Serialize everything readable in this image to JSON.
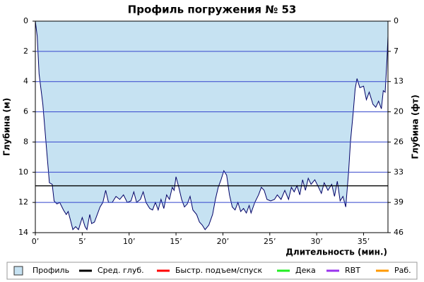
{
  "chart_data": {
    "type": "area",
    "title": "Профиль погружения № 53",
    "xlabel": "Длительность (мин.)",
    "ylabel": "Глубина (м)",
    "y2label": "Глубина (фт)",
    "x": [
      0,
      0.2,
      0.4,
      0.8,
      1.2,
      1.5,
      1.8,
      2,
      2.3,
      2.6,
      3,
      3.3,
      3.5,
      3.8,
      4,
      4.3,
      4.6,
      4.8,
      5,
      5.3,
      5.5,
      5.8,
      6,
      6.3,
      6.6,
      6.9,
      7.2,
      7.5,
      7.8,
      8.2,
      8.6,
      9,
      9.4,
      9.8,
      10.2,
      10.5,
      10.8,
      11.2,
      11.5,
      11.8,
      12.2,
      12.5,
      12.8,
      13.1,
      13.4,
      13.7,
      14,
      14.3,
      14.6,
      14.8,
      15,
      15.3,
      15.6,
      15.9,
      16.2,
      16.5,
      16.8,
      17.2,
      17.5,
      17.8,
      18.1,
      18.5,
      18.9,
      19.2,
      19.5,
      19.8,
      20.1,
      20.4,
      20.7,
      21,
      21.3,
      21.6,
      21.9,
      22.2,
      22.5,
      22.8,
      23,
      23.4,
      23.8,
      24.1,
      24.4,
      24.7,
      25.1,
      25.5,
      25.8,
      26.2,
      26.6,
      27,
      27.3,
      27.6,
      27.9,
      28.2,
      28.5,
      28.8,
      29.1,
      29.4,
      29.8,
      30.2,
      30.5,
      30.8,
      31.2,
      31.6,
      31.9,
      32.2,
      32.5,
      32.8,
      33.1,
      33.4,
      33.6,
      33.9,
      34.1,
      34.3,
      34.6,
      35,
      35.3,
      35.6,
      36,
      36.3,
      36.6,
      36.9,
      37.1,
      37.3,
      37.5,
      37.6
    ],
    "series": [
      {
        "name": "Профиль",
        "color": "#c6e2f2",
        "line_color": "#000066",
        "values": [
          0,
          1,
          3.5,
          5.5,
          8.5,
          10.7,
          10.8,
          11.9,
          12.1,
          12,
          12.5,
          12.8,
          12.6,
          13.3,
          13.8,
          13.6,
          13.8,
          13.4,
          13,
          13.6,
          13.8,
          12.8,
          13.4,
          13.3,
          12.8,
          12.3,
          12,
          11.2,
          12,
          12,
          11.6,
          11.8,
          11.5,
          12,
          11.9,
          11.3,
          12,
          11.8,
          11.3,
          12,
          12.4,
          12.5,
          12,
          12.5,
          11.8,
          12.4,
          11.5,
          11.8,
          11,
          11.2,
          10.3,
          11,
          11.8,
          12.3,
          12.1,
          11.6,
          12.5,
          12.8,
          13.3,
          13.5,
          13.8,
          13.5,
          12.8,
          11.8,
          11,
          10.5,
          9.9,
          10.2,
          11.5,
          12.3,
          12.5,
          12,
          12.6,
          12.4,
          12.7,
          12.2,
          12.7,
          12,
          11.5,
          11,
          11.2,
          11.8,
          11.9,
          11.8,
          11.5,
          11.8,
          11.2,
          11.8,
          11,
          11.3,
          10.9,
          11.5,
          10.5,
          11.2,
          10.4,
          10.8,
          10.5,
          11,
          11.4,
          10.7,
          11.2,
          10.8,
          11.6,
          10.6,
          11.9,
          11.6,
          12.3,
          10,
          8,
          6,
          4.5,
          3.8,
          4.4,
          4.3,
          5.2,
          4.7,
          5.5,
          5.7,
          5.3,
          5.8,
          4.6,
          4.7,
          2.5,
          1
        ]
      }
    ],
    "reference_lines": [
      {
        "name": "Сред. глуб.",
        "color": "#000000",
        "value": 10.9
      }
    ],
    "legend": [
      {
        "name": "Быстр. подъем/спуск",
        "color": "#ff0000"
      },
      {
        "name": "Дека",
        "color": "#22ee22"
      },
      {
        "name": "RBT",
        "color": "#9933ee"
      },
      {
        "name": "Раб.",
        "color": "#ff9900"
      }
    ],
    "xlim": [
      0,
      37.6
    ],
    "ylim": [
      0,
      14
    ],
    "y_inverted": true,
    "y2lim": [
      0,
      45.93
    ],
    "xticks": [
      {
        "value": 0,
        "label": "0’"
      },
      {
        "value": 5,
        "label": "5’"
      },
      {
        "value": 10,
        "label": "10’"
      },
      {
        "value": 15,
        "label": "15’"
      },
      {
        "value": 20,
        "label": "20’"
      },
      {
        "value": 25,
        "label": "25’"
      },
      {
        "value": 30,
        "label": "30’"
      },
      {
        "value": 35,
        "label": "35’"
      }
    ],
    "yticks": [
      0,
      2,
      4,
      6,
      8,
      10,
      12,
      14
    ],
    "y2ticks": [
      0,
      {
        "value": 6.56,
        "label": "7"
      },
      {
        "value": 13.12,
        "label": "13"
      },
      {
        "value": 19.69,
        "label": "20"
      },
      {
        "value": 26.25,
        "label": "26"
      },
      {
        "value": 32.81,
        "label": "33"
      },
      {
        "value": 39.37,
        "label": "39"
      },
      {
        "value": 45.93,
        "label": "46"
      }
    ],
    "grid": true,
    "grid_color": "#3344cc"
  }
}
